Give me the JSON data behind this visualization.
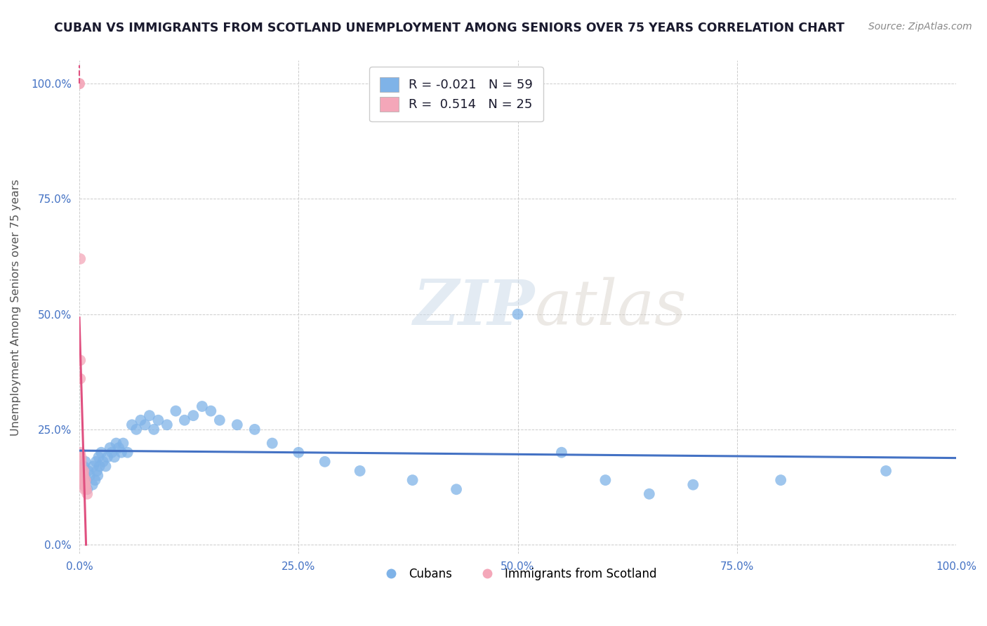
{
  "title": "CUBAN VS IMMIGRANTS FROM SCOTLAND UNEMPLOYMENT AMONG SENIORS OVER 75 YEARS CORRELATION CHART",
  "source": "Source: ZipAtlas.com",
  "ylabel": "Unemployment Among Seniors over 75 years",
  "xlim": [
    0.0,
    1.0
  ],
  "ylim": [
    -0.02,
    1.05
  ],
  "xticks": [
    0.0,
    0.25,
    0.5,
    0.75,
    1.0
  ],
  "xticklabels": [
    "0.0%",
    "25.0%",
    "50.0%",
    "75.0%",
    "100.0%"
  ],
  "yticks": [
    0.0,
    0.25,
    0.5,
    0.75,
    1.0
  ],
  "yticklabels": [
    "0.0%",
    "25.0%",
    "50.0%",
    "75.0%",
    "100.0%"
  ],
  "cubans_x": [
    0.002,
    0.003,
    0.004,
    0.005,
    0.006,
    0.007,
    0.008,
    0.009,
    0.01,
    0.012,
    0.015,
    0.016,
    0.018,
    0.019,
    0.02,
    0.021,
    0.022,
    0.023,
    0.025,
    0.027,
    0.03,
    0.032,
    0.035,
    0.037,
    0.04,
    0.042,
    0.045,
    0.048,
    0.05,
    0.055,
    0.06,
    0.065,
    0.07,
    0.075,
    0.08,
    0.085,
    0.09,
    0.1,
    0.11,
    0.12,
    0.13,
    0.14,
    0.15,
    0.16,
    0.18,
    0.2,
    0.22,
    0.25,
    0.28,
    0.32,
    0.38,
    0.43,
    0.5,
    0.55,
    0.6,
    0.65,
    0.7,
    0.8,
    0.92
  ],
  "cubans_y": [
    0.14,
    0.16,
    0.13,
    0.17,
    0.15,
    0.18,
    0.14,
    0.12,
    0.16,
    0.15,
    0.13,
    0.17,
    0.14,
    0.18,
    0.16,
    0.15,
    0.19,
    0.17,
    0.2,
    0.18,
    0.17,
    0.19,
    0.21,
    0.2,
    0.19,
    0.22,
    0.21,
    0.2,
    0.22,
    0.2,
    0.26,
    0.25,
    0.27,
    0.26,
    0.28,
    0.25,
    0.27,
    0.26,
    0.29,
    0.27,
    0.28,
    0.3,
    0.29,
    0.27,
    0.26,
    0.25,
    0.22,
    0.2,
    0.18,
    0.16,
    0.14,
    0.12,
    0.5,
    0.2,
    0.14,
    0.11,
    0.13,
    0.14,
    0.16
  ],
  "scotland_x": [
    0.0,
    0.0,
    0.001,
    0.001,
    0.001,
    0.001,
    0.002,
    0.002,
    0.002,
    0.003,
    0.003,
    0.003,
    0.004,
    0.004,
    0.004,
    0.004,
    0.005,
    0.005,
    0.005,
    0.006,
    0.006,
    0.007,
    0.007,
    0.008,
    0.009
  ],
  "scotland_y": [
    1.0,
    1.0,
    0.62,
    0.4,
    0.36,
    0.2,
    0.19,
    0.18,
    0.17,
    0.16,
    0.15,
    0.15,
    0.14,
    0.14,
    0.14,
    0.13,
    0.16,
    0.15,
    0.14,
    0.13,
    0.12,
    0.14,
    0.13,
    0.12,
    0.11
  ],
  "cubans_R": -0.021,
  "cubans_N": 59,
  "scotland_R": 0.514,
  "scotland_N": 25,
  "cubans_color": "#7fb3e8",
  "scotland_color": "#f4a7b9",
  "cubans_line_color": "#4472c4",
  "scotland_line_color": "#e05080",
  "background_color": "#ffffff",
  "grid_color": "#cccccc",
  "watermark_zip": "ZIP",
  "watermark_atlas": "atlas",
  "legend_label_cubans": "Cubans",
  "legend_label_scotland": "Immigrants from Scotland"
}
